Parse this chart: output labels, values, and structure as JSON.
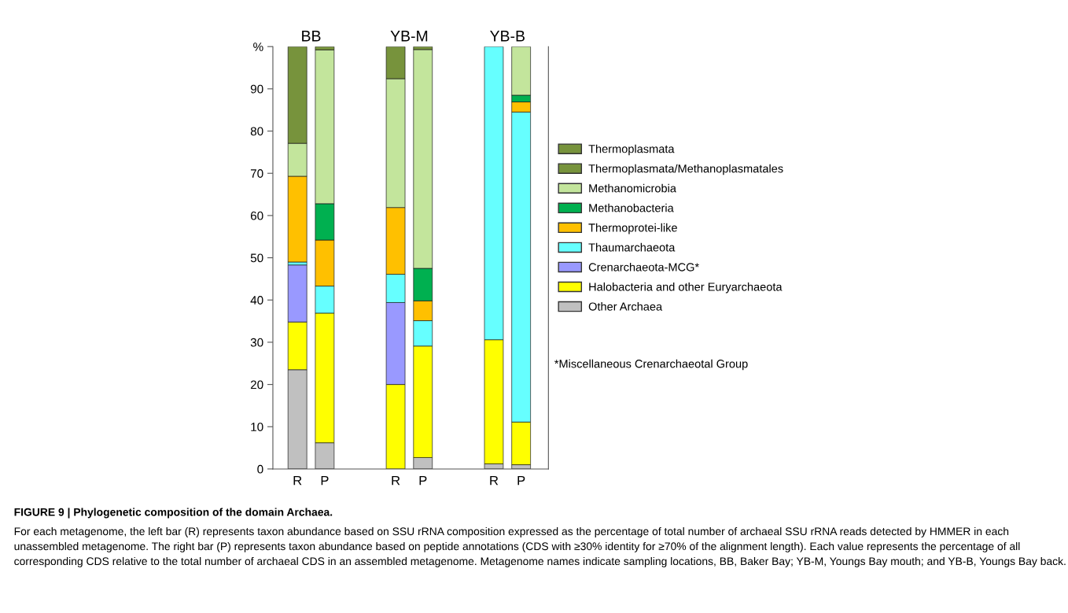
{
  "chart_data": {
    "type": "bar",
    "stacked": true,
    "categories": [
      "R",
      "P",
      "R",
      "P",
      "R",
      "P"
    ],
    "series": [
      {
        "name": "Other Archaea",
        "color": "#c0c0c0",
        "values": [
          23.5,
          6.2,
          0,
          2.7,
          1.2,
          1.0
        ]
      },
      {
        "name": "Halobacteria and other Euryarchaeota",
        "color": "#ffff00",
        "values": [
          11.3,
          30.7,
          20.0,
          26.4,
          29.4,
          10.1
        ]
      },
      {
        "name": "Crenarchaeota-MCG*",
        "color": "#9999ff",
        "values": [
          13.5,
          0,
          19.4,
          0,
          0,
          0
        ]
      },
      {
        "name": "Thaumarchaeota",
        "color": "#66ffff",
        "values": [
          0.7,
          6.4,
          6.7,
          6.0,
          69.4,
          73.4
        ]
      },
      {
        "name": "Thermoprotei-like",
        "color": "#ffc000",
        "values": [
          20.3,
          10.9,
          15.8,
          4.7,
          0,
          2.4
        ]
      },
      {
        "name": "Methanobacteria",
        "color": "#00b050",
        "values": [
          0,
          8.6,
          0,
          7.7,
          0,
          1.6
        ]
      },
      {
        "name": "Methanomicrobia",
        "color": "#c3e59c",
        "values": [
          7.8,
          36.4,
          30.5,
          51.8,
          0,
          11.5
        ]
      },
      {
        "name": "Thermoplasmata/Methanoplasmatales",
        "color": "#77933c",
        "values": [
          22.9,
          0,
          7.6,
          0,
          0,
          0
        ]
      },
      {
        "name": "Thermoplasmata",
        "color": "#77933c",
        "values": [
          0,
          0.8,
          0,
          0.7,
          0,
          0
        ]
      }
    ],
    "ylim": [
      0,
      100
    ],
    "yticks": [
      0,
      10,
      20,
      30,
      40,
      50,
      60,
      70,
      80,
      90,
      {
        "value": 100,
        "label": "%"
      }
    ],
    "grid": false,
    "legend": "right",
    "annotations": [
      "BB",
      "YB-M",
      "YB-B",
      "*Miscellaneous Crenarchaeotal Group",
      "FIGURE 9 | Phylogenetic composition of the domain Archaea.",
      "For each metagenome, the left bar (R) represents taxon abundance based on SSU rRNA composition expressed as the percentage of total number of archaeal SSU rRNA reads detected by HMMER in each unassembled metagenome. The right bar (P) represents taxon abundance based on peptide annotations (CDS with ≥30% identity for ≥70% of the alignment length). Each value represents the percentage of all corresponding CDS relative to the total number of archaeal CDS in an assembled metagenome. Metagenome names indicate sampling locations, BB, Baker Bay; YB-M, Youngs Bay mouth; and YB-B, Youngs Bay back."
    ]
  }
}
